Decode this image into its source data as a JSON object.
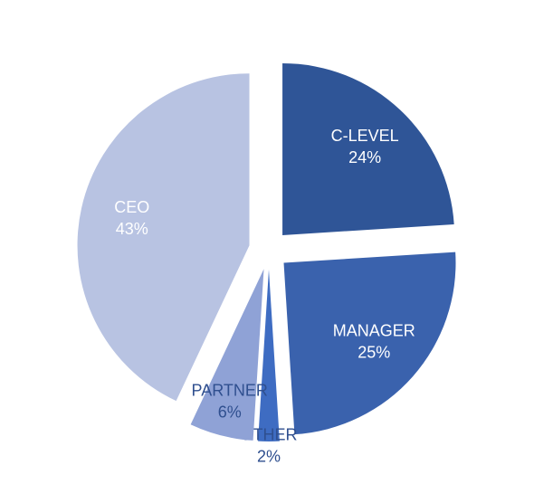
{
  "chart_data": {
    "type": "pie",
    "categories": [
      "C-LEVEL",
      "MANAGER",
      "OTHER",
      "PARTNER",
      "CEO"
    ],
    "values": [
      24,
      25,
      2,
      6,
      43
    ],
    "value_labels": [
      "24%",
      "25%",
      "2%",
      "6%",
      "43%"
    ],
    "colors": [
      "#2f5597",
      "#3a62ad",
      "#3e6cc2",
      "#8fa2d6",
      "#b8c3e2"
    ],
    "label_colors": [
      "#ffffff",
      "#ffffff",
      "#2f4f8f",
      "#2f4f8f",
      "#ffffff"
    ]
  }
}
